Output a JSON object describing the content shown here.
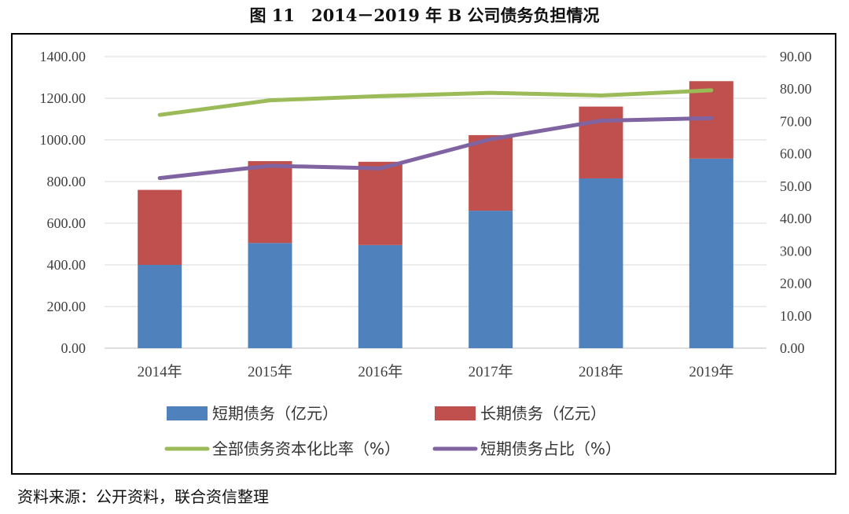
{
  "figure_title": "图 11　2014－2019 年 B 公司债务负担情况",
  "source_note": "资料来源：公开资料，联合资信整理",
  "chart_data": {
    "type": "bar",
    "stacked": true,
    "categories": [
      "2014年",
      "2015年",
      "2016年",
      "2017年",
      "2018年",
      "2019年"
    ],
    "y_left": {
      "lim": [
        0,
        1400
      ],
      "ticks": [
        "0.00",
        "200.00",
        "400.00",
        "600.00",
        "800.00",
        "1000.00",
        "1200.00",
        "1400.00"
      ]
    },
    "y_right": {
      "lim": [
        0,
        90
      ],
      "ticks": [
        "0.00",
        "10.00",
        "20.00",
        "30.00",
        "40.00",
        "50.00",
        "60.00",
        "70.00",
        "80.00",
        "90.00"
      ]
    },
    "grid": true,
    "legend_position": "bottom",
    "bar_series": [
      {
        "name": "短期债务（亿元）",
        "color": "#4f81bd",
        "values": [
          400,
          505,
          495,
          660,
          815,
          910
        ]
      },
      {
        "name": "长期债务（亿元）",
        "color": "#c0504d",
        "values": [
          360,
          393,
          400,
          363,
          345,
          372
        ]
      }
    ],
    "line_series": [
      {
        "name": "全部债务资本化比率（%）",
        "color": "#9bbb59",
        "axis": "right",
        "values": [
          72.0,
          76.5,
          77.8,
          78.8,
          78.0,
          79.6
        ]
      },
      {
        "name": "短期债务占比（%）",
        "color": "#8064a2",
        "axis": "right",
        "values": [
          52.5,
          56.3,
          55.5,
          64.5,
          70.2,
          71.0
        ]
      }
    ]
  }
}
